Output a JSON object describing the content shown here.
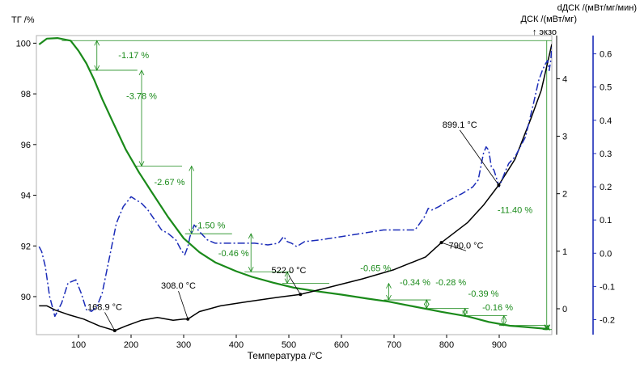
{
  "chart_data": {
    "type": "line",
    "title": "",
    "xlabel": "Температура /°C",
    "xlim": [
      20,
      1000
    ],
    "x_ticks": [
      100,
      200,
      300,
      400,
      500,
      600,
      700,
      800,
      900
    ],
    "axes": {
      "tg": {
        "label": "ТГ /%",
        "ylim": [
          88.5,
          100.3
        ],
        "ticks": [
          90,
          92,
          94,
          96,
          98,
          100
        ]
      },
      "dsc": {
        "label": "ДСК /(мВт/мг)",
        "exo_label": "↑ экзо",
        "ylim": [
          -0.45,
          4.75
        ],
        "ticks": [
          0,
          1,
          2,
          3,
          4
        ]
      },
      "ddsc": {
        "label": "dДСК /(мВт/мг/мин)",
        "ylim": [
          -0.245,
          0.655
        ],
        "ticks": [
          -0.2,
          -0.1,
          0.0,
          0.1,
          0.2,
          0.3,
          0.4,
          0.5,
          0.6
        ]
      }
    },
    "series": [
      {
        "name": "ТГ",
        "axis": "tg",
        "color": "#1a8a1a",
        "x": [
          25,
          40,
          60,
          85,
          100,
          115,
          130,
          145,
          165,
          190,
          215,
          240,
          270,
          300,
          330,
          360,
          400,
          430,
          470,
          510,
          550,
          600,
          650,
          690,
          740,
          790,
          840,
          880,
          920,
          960,
          995
        ],
        "y": [
          99.95,
          100.18,
          100.2,
          100.1,
          99.7,
          99.2,
          98.55,
          97.8,
          96.9,
          95.8,
          94.9,
          94.1,
          93.15,
          92.3,
          91.75,
          91.35,
          91.0,
          90.78,
          90.55,
          90.35,
          90.22,
          90.08,
          89.92,
          89.8,
          89.6,
          89.4,
          89.22,
          89.0,
          88.85,
          88.78,
          88.72
        ]
      },
      {
        "name": "ДСК",
        "axis": "dsc",
        "color": "#000000",
        "x": [
          25,
          40,
          55,
          80,
          110,
          140,
          168.9,
          190,
          220,
          250,
          280,
          300,
          308,
          330,
          370,
          420,
          480,
          522,
          580,
          640,
          700,
          760,
          790,
          840,
          870,
          899.1,
          930,
          960,
          980,
          1000
        ],
        "y": [
          0.05,
          0.05,
          -0.02,
          -0.1,
          -0.18,
          -0.3,
          -0.38,
          -0.3,
          -0.2,
          -0.15,
          -0.2,
          -0.18,
          -0.18,
          -0.05,
          0.05,
          0.12,
          0.2,
          0.25,
          0.38,
          0.52,
          0.68,
          0.9,
          1.15,
          1.5,
          1.8,
          2.15,
          2.6,
          3.3,
          3.8,
          4.6
        ]
      },
      {
        "name": "dДСК",
        "axis": "ddsc",
        "color": "#1a2bb8",
        "dash": "9 3 2 3",
        "x": [
          25,
          30,
          37,
          45,
          55,
          68,
          80,
          95,
          105,
          115,
          125,
          135,
          145,
          158,
          172,
          185,
          200,
          210,
          220,
          232,
          245,
          258,
          270,
          285,
          295,
          302,
          308,
          312,
          320,
          330,
          345,
          360,
          375,
          395,
          415,
          435,
          460,
          480,
          490,
          497,
          505,
          515,
          530,
          560,
          600,
          640,
          680,
          715,
          740,
          758,
          765,
          772,
          785,
          805,
          830,
          850,
          860,
          870,
          875,
          880,
          885,
          890,
          900,
          910,
          918,
          930,
          950,
          965,
          975,
          982,
          988,
          992,
          995,
          998,
          1000
        ],
        "y": [
          0.02,
          0.005,
          -0.04,
          -0.13,
          -0.19,
          -0.15,
          -0.09,
          -0.08,
          -0.12,
          -0.17,
          -0.175,
          -0.16,
          -0.12,
          -0.02,
          0.09,
          0.14,
          0.17,
          0.16,
          0.15,
          0.13,
          0.1,
          0.07,
          0.06,
          0.04,
          0.01,
          -0.005,
          0.02,
          0.05,
          0.085,
          0.065,
          0.04,
          0.03,
          0.03,
          0.03,
          0.03,
          0.03,
          0.025,
          0.03,
          0.05,
          0.035,
          0.03,
          0.02,
          0.035,
          0.04,
          0.05,
          0.06,
          0.07,
          0.07,
          0.07,
          0.11,
          0.135,
          0.13,
          0.14,
          0.16,
          0.18,
          0.2,
          0.22,
          0.3,
          0.32,
          0.31,
          0.26,
          0.25,
          0.2,
          0.24,
          0.27,
          0.29,
          0.35,
          0.45,
          0.52,
          0.55,
          0.57,
          0.58,
          0.55,
          0.58,
          0.62
        ]
      }
    ],
    "tg_steps": [
      {
        "label": "-1.17 %",
        "x0": 25,
        "x1": 135,
        "y0": 100.1,
        "y1": 98.93,
        "lx": 205,
        "ly": 99.4
      },
      {
        "label": "-3.78 %",
        "x0": 135,
        "x1": 220,
        "y0": 98.93,
        "y1": 95.15,
        "lx": 220,
        "ly": 97.8
      },
      {
        "label": "-2.67 %",
        "x0": 220,
        "x1": 315,
        "y0": 95.15,
        "y1": 92.48,
        "lx": 273,
        "ly": 94.4
      },
      {
        "label": "-1.50 %",
        "x0": 315,
        "x1": 428,
        "y0": 92.48,
        "y1": 90.98,
        "lx": 350,
        "ly": 92.7
      },
      {
        "label": "-0.46 %",
        "x0": 428,
        "x1": 500,
        "y0": 90.98,
        "y1": 90.52,
        "lx": 395,
        "ly": 91.6
      },
      {
        "label": "-0.65 %",
        "x0": 500,
        "x1": 693,
        "y0": 90.52,
        "y1": 89.87,
        "lx": 665,
        "ly": 91.0
      },
      {
        "label": "-0.34 %",
        "x0": 693,
        "x1": 765,
        "y0": 89.87,
        "y1": 89.53,
        "lx": 740,
        "ly": 90.45
      },
      {
        "label": "-0.28 %",
        "x0": 765,
        "x1": 838,
        "y0": 89.53,
        "y1": 89.25,
        "lx": 808,
        "ly": 90.45
      },
      {
        "label": "-0.39 %",
        "x0": 838,
        "x1": 912,
        "y0": 89.25,
        "y1": 88.86,
        "lx": 870,
        "ly": 90.0
      },
      {
        "label": "-0.16 %",
        "x0": 912,
        "x1": 995,
        "y0": 88.86,
        "y1": 88.7,
        "lx": 897,
        "ly": 89.45
      },
      {
        "label": "-11.40 %",
        "x0": 25,
        "x1": 995,
        "y0": 100.1,
        "y1": 88.7,
        "lx": 930,
        "ly": 93.3,
        "total": true
      }
    ],
    "annotations": [
      {
        "label": "168.9 °C",
        "x": 168.9,
        "y": -0.38,
        "tx": 150,
        "ty": -0.02
      },
      {
        "label": "308.0 °C",
        "x": 308.0,
        "y": -0.18,
        "tx": 290,
        "ty": 0.35
      },
      {
        "label": "522.0 °C",
        "x": 522.0,
        "y": 0.25,
        "tx": 500,
        "ty": 0.62
      },
      {
        "label": "790.0 °C",
        "x": 790.0,
        "y": 1.15,
        "tx": 837,
        "ty": 1.05
      },
      {
        "label": "899.1 °C",
        "x": 899.1,
        "y": 2.15,
        "tx": 825,
        "ty": 3.15
      }
    ]
  }
}
